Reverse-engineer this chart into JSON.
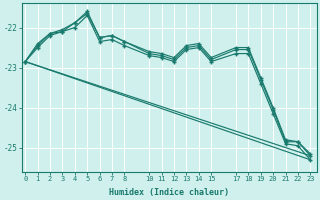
{
  "xlabel": "Humidex (Indice chaleur)",
  "background_color": "#cff0ec",
  "grid_color": "#ffffff",
  "line_color": "#1a7a6e",
  "x_ticks": [
    0,
    1,
    2,
    3,
    4,
    5,
    6,
    7,
    8,
    10,
    11,
    12,
    13,
    14,
    15,
    17,
    18,
    19,
    20,
    21,
    22,
    23
  ],
  "xlim": [
    -0.3,
    23.5
  ],
  "ylim": [
    -25.6,
    -21.4
  ],
  "y_ticks": [
    -25,
    -24,
    -23,
    -22
  ],
  "curve1_x": [
    0,
    1,
    2,
    3,
    4,
    5,
    6,
    7,
    8,
    10,
    11,
    12,
    13,
    14,
    15,
    17,
    18,
    19,
    20,
    21,
    22,
    23
  ],
  "curve1_y": [
    -22.85,
    -22.5,
    -22.2,
    -22.1,
    -22.0,
    -21.7,
    -22.35,
    -22.3,
    -22.45,
    -22.7,
    -22.75,
    -22.85,
    -22.55,
    -22.5,
    -22.85,
    -22.65,
    -22.65,
    -23.4,
    -24.15,
    -24.9,
    -24.95,
    -25.3
  ],
  "curve2_x": [
    0,
    1,
    2,
    3,
    4,
    5,
    6,
    7,
    8,
    10,
    11,
    12,
    13,
    14,
    15,
    17,
    18,
    19,
    20,
    21,
    22,
    23
  ],
  "curve2_y": [
    -22.85,
    -22.45,
    -22.15,
    -22.05,
    -21.88,
    -21.65,
    -22.25,
    -22.2,
    -22.35,
    -22.6,
    -22.65,
    -22.75,
    -22.45,
    -22.4,
    -22.75,
    -22.5,
    -22.5,
    -23.25,
    -24.0,
    -24.8,
    -24.85,
    -25.2
  ],
  "trend1_x": [
    0,
    23
  ],
  "trend1_y": [
    -22.85,
    -25.3
  ],
  "trend2_x": [
    0,
    23
  ],
  "trend2_y": [
    -22.85,
    -25.2
  ],
  "jagged_x": [
    0,
    1,
    2,
    3,
    4,
    5,
    6,
    7,
    8,
    10,
    11,
    12,
    13,
    14,
    15,
    17,
    18,
    19,
    20,
    21,
    22,
    23
  ],
  "jagged_y": [
    -22.85,
    -22.4,
    -22.15,
    -22.1,
    -21.88,
    -21.6,
    -22.25,
    -22.2,
    -22.35,
    -22.65,
    -22.7,
    -22.8,
    -22.5,
    -22.45,
    -22.8,
    -22.55,
    -22.55,
    -23.3,
    -24.05,
    -24.85,
    -24.85,
    -25.15
  ]
}
